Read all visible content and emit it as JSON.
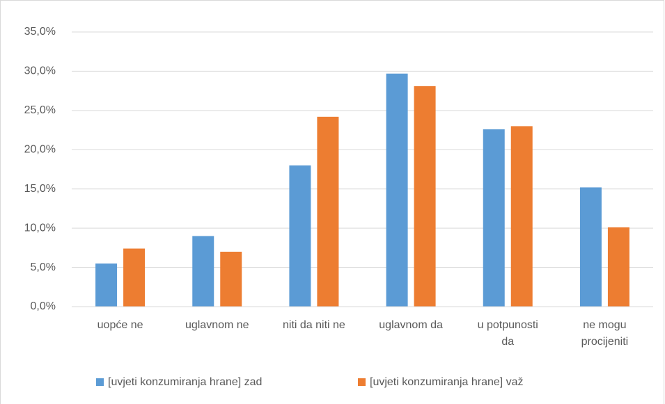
{
  "chart_data": {
    "type": "bar",
    "categories": [
      "uopće ne",
      "uglavnom ne",
      "niti da niti ne",
      "uglavnom da",
      "u potpunosti\nda",
      "ne mogu\nprocijeniti"
    ],
    "series": [
      {
        "name": "[uvjeti konzumiranja hrane] zad",
        "color": "#5b9bd5",
        "values": [
          5.5,
          9.0,
          18.0,
          29.7,
          22.6,
          15.2
        ]
      },
      {
        "name": "[uvjeti konzumiranja hrane] važ",
        "color": "#ed7d31",
        "values": [
          7.4,
          7.0,
          24.2,
          28.1,
          23.0,
          10.1
        ]
      }
    ],
    "ylim": [
      0,
      35
    ],
    "yticks": [
      {
        "value": 0,
        "label": "0,0%"
      },
      {
        "value": 5,
        "label": "5,0%"
      },
      {
        "value": 10,
        "label": "10,0%"
      },
      {
        "value": 15,
        "label": "15,0%"
      },
      {
        "value": 20,
        "label": "20,0%"
      },
      {
        "value": 25,
        "label": "25,0%"
      },
      {
        "value": 30,
        "label": "30,0%"
      },
      {
        "value": 35,
        "label": "35,0%"
      }
    ],
    "grid": true,
    "legend": "bottom"
  }
}
